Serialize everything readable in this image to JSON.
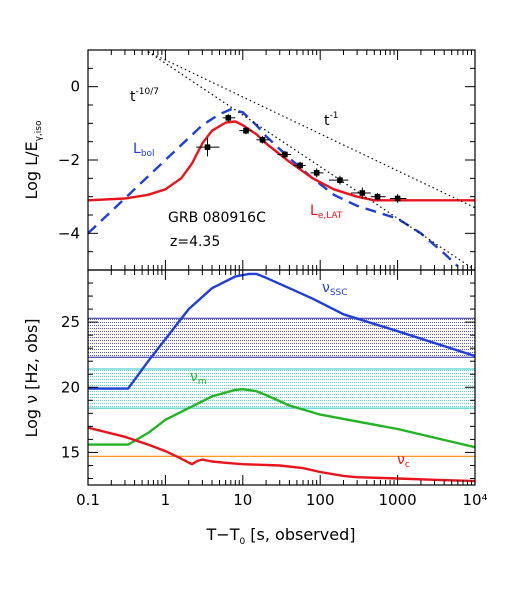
{
  "chart_data": [
    {
      "type": "line",
      "panel": "top",
      "ylabel": "Log L/E",
      "ylabel_sub": "γ,iso",
      "xscale": "log",
      "xlim": [
        0.1,
        10000
      ],
      "ylim": [
        -5,
        1
      ],
      "yticks": [
        -4,
        -2,
        0
      ],
      "series": [
        {
          "name": "L_bol",
          "color": "#1f3fd6",
          "style": "dashed",
          "x": [
            0.1,
            0.2,
            0.5,
            1,
            2,
            3,
            5,
            7,
            10,
            15,
            20,
            40,
            80,
            150,
            300,
            600,
            1000,
            2000,
            4000,
            6000
          ],
          "y": [
            -4.0,
            -3.4,
            -2.6,
            -2.0,
            -1.4,
            -1.05,
            -0.75,
            -0.62,
            -0.7,
            -1.05,
            -1.35,
            -1.95,
            -2.5,
            -2.95,
            -3.25,
            -3.45,
            -3.6,
            -4.0,
            -4.55,
            -4.9
          ]
        },
        {
          "name": "L_e,LAT",
          "color": "#e8141c",
          "style": "solid",
          "x": [
            0.1,
            0.3,
            0.6,
            1,
            1.6,
            2.2,
            3,
            4,
            6,
            8,
            10,
            15,
            20,
            40,
            80,
            150,
            300,
            500,
            1000,
            2000,
            4000,
            10000
          ],
          "y": [
            -3.1,
            -3.05,
            -2.95,
            -2.8,
            -2.5,
            -2.1,
            -1.55,
            -1.2,
            -0.98,
            -0.95,
            -1.05,
            -1.3,
            -1.55,
            -2.05,
            -2.5,
            -2.8,
            -3.0,
            -3.1,
            -3.1,
            -3.1,
            -3.1,
            -3.1
          ]
        },
        {
          "name": "t^-1",
          "color": "#000000",
          "style": "dotted",
          "x": [
            0.6,
            10000
          ],
          "y": [
            0.95,
            -3.3
          ]
        },
        {
          "name": "t^-10/7",
          "color": "#000000",
          "style": "dotted",
          "x": [
            0.6,
            10000
          ],
          "y": [
            0.95,
            -5.0
          ]
        }
      ],
      "points": {
        "x": [
          3.5,
          6.5,
          11,
          18,
          35,
          55,
          90,
          180,
          350,
          550,
          1000
        ],
        "y": [
          -1.65,
          -0.85,
          -1.2,
          -1.45,
          -1.85,
          -2.15,
          -2.35,
          -2.55,
          -2.9,
          -3.0,
          -3.05
        ],
        "xlo": [
          2.5,
          5.5,
          9,
          15,
          28,
          45,
          75,
          130,
          250,
          450,
          800
        ],
        "xhi": [
          5.0,
          8.0,
          13,
          22,
          42,
          65,
          110,
          230,
          450,
          700,
          1300
        ],
        "yerr": [
          0.25,
          0.1,
          0.1,
          0.1,
          0.1,
          0.1,
          0.12,
          0.12,
          0.15,
          0.1,
          0.12
        ]
      },
      "annotations": {
        "t_power_a": "t",
        "t_power_a_exp": "-10/7",
        "t_power_b": "t",
        "t_power_b_exp": "-1",
        "lbol": "L",
        "lbol_sub": "bol",
        "lelat": "L",
        "lelat_sub": "e,LAT",
        "grb": "GRB 080916C",
        "z": "z=4.35"
      }
    },
    {
      "type": "line",
      "panel": "bottom",
      "ylabel": "Log ν [Hz, obs]",
      "xlabel": "T−T",
      "xlabel_sub": "0",
      "xlabel_tail": " [s, observed]",
      "xscale": "log",
      "xlim": [
        0.1,
        10000
      ],
      "ylim": [
        12.5,
        29
      ],
      "yticks": [
        15,
        20,
        25
      ],
      "xticks": [
        "0.1",
        "1",
        "10",
        "100",
        "1000",
        "10⁴"
      ],
      "bands": [
        {
          "name": "blue band",
          "color": "#2222aa",
          "y": [
            22.3,
            25.3
          ]
        },
        {
          "name": "cyan band",
          "color": "#25c4c4",
          "y": [
            18.4,
            21.4
          ]
        },
        {
          "name": "orange line",
          "color": "#ff8c00",
          "y": [
            14.7,
            14.7
          ]
        }
      ],
      "series": [
        {
          "name": "ν_SSC",
          "color": "#1f3fd6",
          "x": [
            0.1,
            0.33,
            0.6,
            1,
            2,
            4,
            8,
            12,
            15,
            20,
            40,
            80,
            200,
            1000,
            10000
          ],
          "y": [
            19.9,
            19.9,
            22.0,
            23.7,
            26.0,
            27.6,
            28.5,
            28.7,
            28.7,
            28.4,
            27.6,
            26.8,
            25.6,
            24.3,
            22.4
          ]
        },
        {
          "name": "ν_m",
          "color": "#22b422",
          "x": [
            0.1,
            0.33,
            0.6,
            1,
            2,
            4,
            8,
            10,
            15,
            20,
            40,
            100,
            1000,
            10000
          ],
          "y": [
            15.6,
            15.6,
            16.5,
            17.5,
            18.4,
            19.3,
            19.8,
            19.85,
            19.7,
            19.4,
            18.6,
            17.9,
            16.8,
            15.4
          ]
        },
        {
          "name": "ν_c",
          "color": "#e8141c",
          "x": [
            0.1,
            0.3,
            0.6,
            1,
            1.5,
            2.2,
            2.6,
            3,
            4,
            6,
            10,
            30,
            60,
            100,
            200,
            300,
            1000,
            3000,
            10000
          ],
          "y": [
            16.9,
            16.2,
            15.6,
            15.1,
            14.6,
            14.1,
            14.35,
            14.45,
            14.3,
            14.2,
            14.1,
            14.0,
            13.8,
            13.5,
            13.2,
            13.1,
            13.0,
            12.9,
            12.8
          ]
        }
      ],
      "annotations": {
        "nu_ssc": "ν",
        "nu_ssc_sub": "SSC",
        "nu_m": "ν",
        "nu_m_sub": "m",
        "nu_c": "ν",
        "nu_c_sub": "c"
      }
    }
  ]
}
